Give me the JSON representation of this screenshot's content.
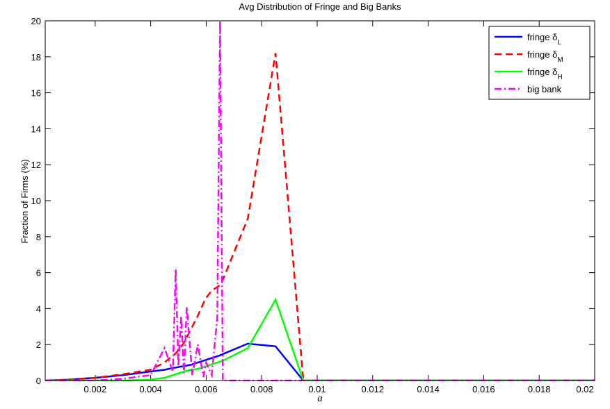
{
  "chart_data": {
    "type": "line",
    "title": "Avg Distribution of Fringe and Big Banks",
    "x_label": "a",
    "y_label": "Fraction of Firms (%)",
    "x": [
      0.0002,
      0.001,
      0.002,
      0.003,
      0.004,
      0.0045,
      0.0048,
      0.0049,
      0.005,
      0.0051,
      0.0052,
      0.0053,
      0.0055,
      0.0057,
      0.0059,
      0.006,
      0.0062,
      0.0064,
      0.0065,
      0.0066,
      0.0075,
      0.0085,
      0.0095,
      0.02
    ],
    "series": [
      {
        "name": "fringe δL",
        "color": "#0000ff",
        "dash": "solid",
        "values": [
          0,
          0.05,
          0.15,
          0.3,
          0.5,
          0.6,
          0.7,
          0.72,
          0.75,
          0.78,
          0.8,
          0.83,
          0.9,
          1.0,
          1.1,
          1.15,
          1.25,
          1.35,
          1.4,
          1.47,
          2.05,
          1.9,
          0,
          0
        ]
      },
      {
        "name": "fringe δM",
        "color": "#ff0000",
        "dash": "dashed",
        "values": [
          0,
          0.05,
          0.15,
          0.35,
          0.6,
          1.0,
          1.4,
          1.5,
          1.7,
          1.9,
          2.1,
          2.4,
          3.0,
          3.6,
          4.3,
          4.6,
          5.0,
          5.2,
          5.3,
          5.6,
          9.0,
          18.2,
          0,
          0
        ]
      },
      {
        "name": "fringe δH",
        "color": "#00ff00",
        "dash": "solid",
        "values": [
          0,
          0,
          0,
          0,
          0.05,
          0.15,
          0.3,
          0.35,
          0.4,
          0.45,
          0.5,
          0.55,
          0.6,
          0.65,
          0.75,
          0.8,
          0.9,
          1.0,
          1.05,
          1.1,
          1.8,
          4.5,
          0,
          0
        ]
      },
      {
        "name": "big bank",
        "color": "#ff00ff",
        "dash": "dashdot",
        "values": [
          0,
          0,
          0,
          0.1,
          0.3,
          1.8,
          0.5,
          6.2,
          0.8,
          3.6,
          0.4,
          4.1,
          0.3,
          2.0,
          0.2,
          1.0,
          0.3,
          3.5,
          20,
          0,
          0,
          0,
          0,
          0
        ]
      }
    ],
    "xlim": [
      0.0002,
      0.02
    ],
    "ylim": [
      0,
      20
    ],
    "xticks": [
      0.002,
      0.004,
      0.006,
      0.008,
      0.01,
      0.012,
      0.014,
      0.016,
      0.018,
      0.02
    ],
    "yticks": [
      0,
      2,
      4,
      6,
      8,
      10,
      12,
      14,
      16,
      18,
      20
    ],
    "legend": "top-right"
  }
}
